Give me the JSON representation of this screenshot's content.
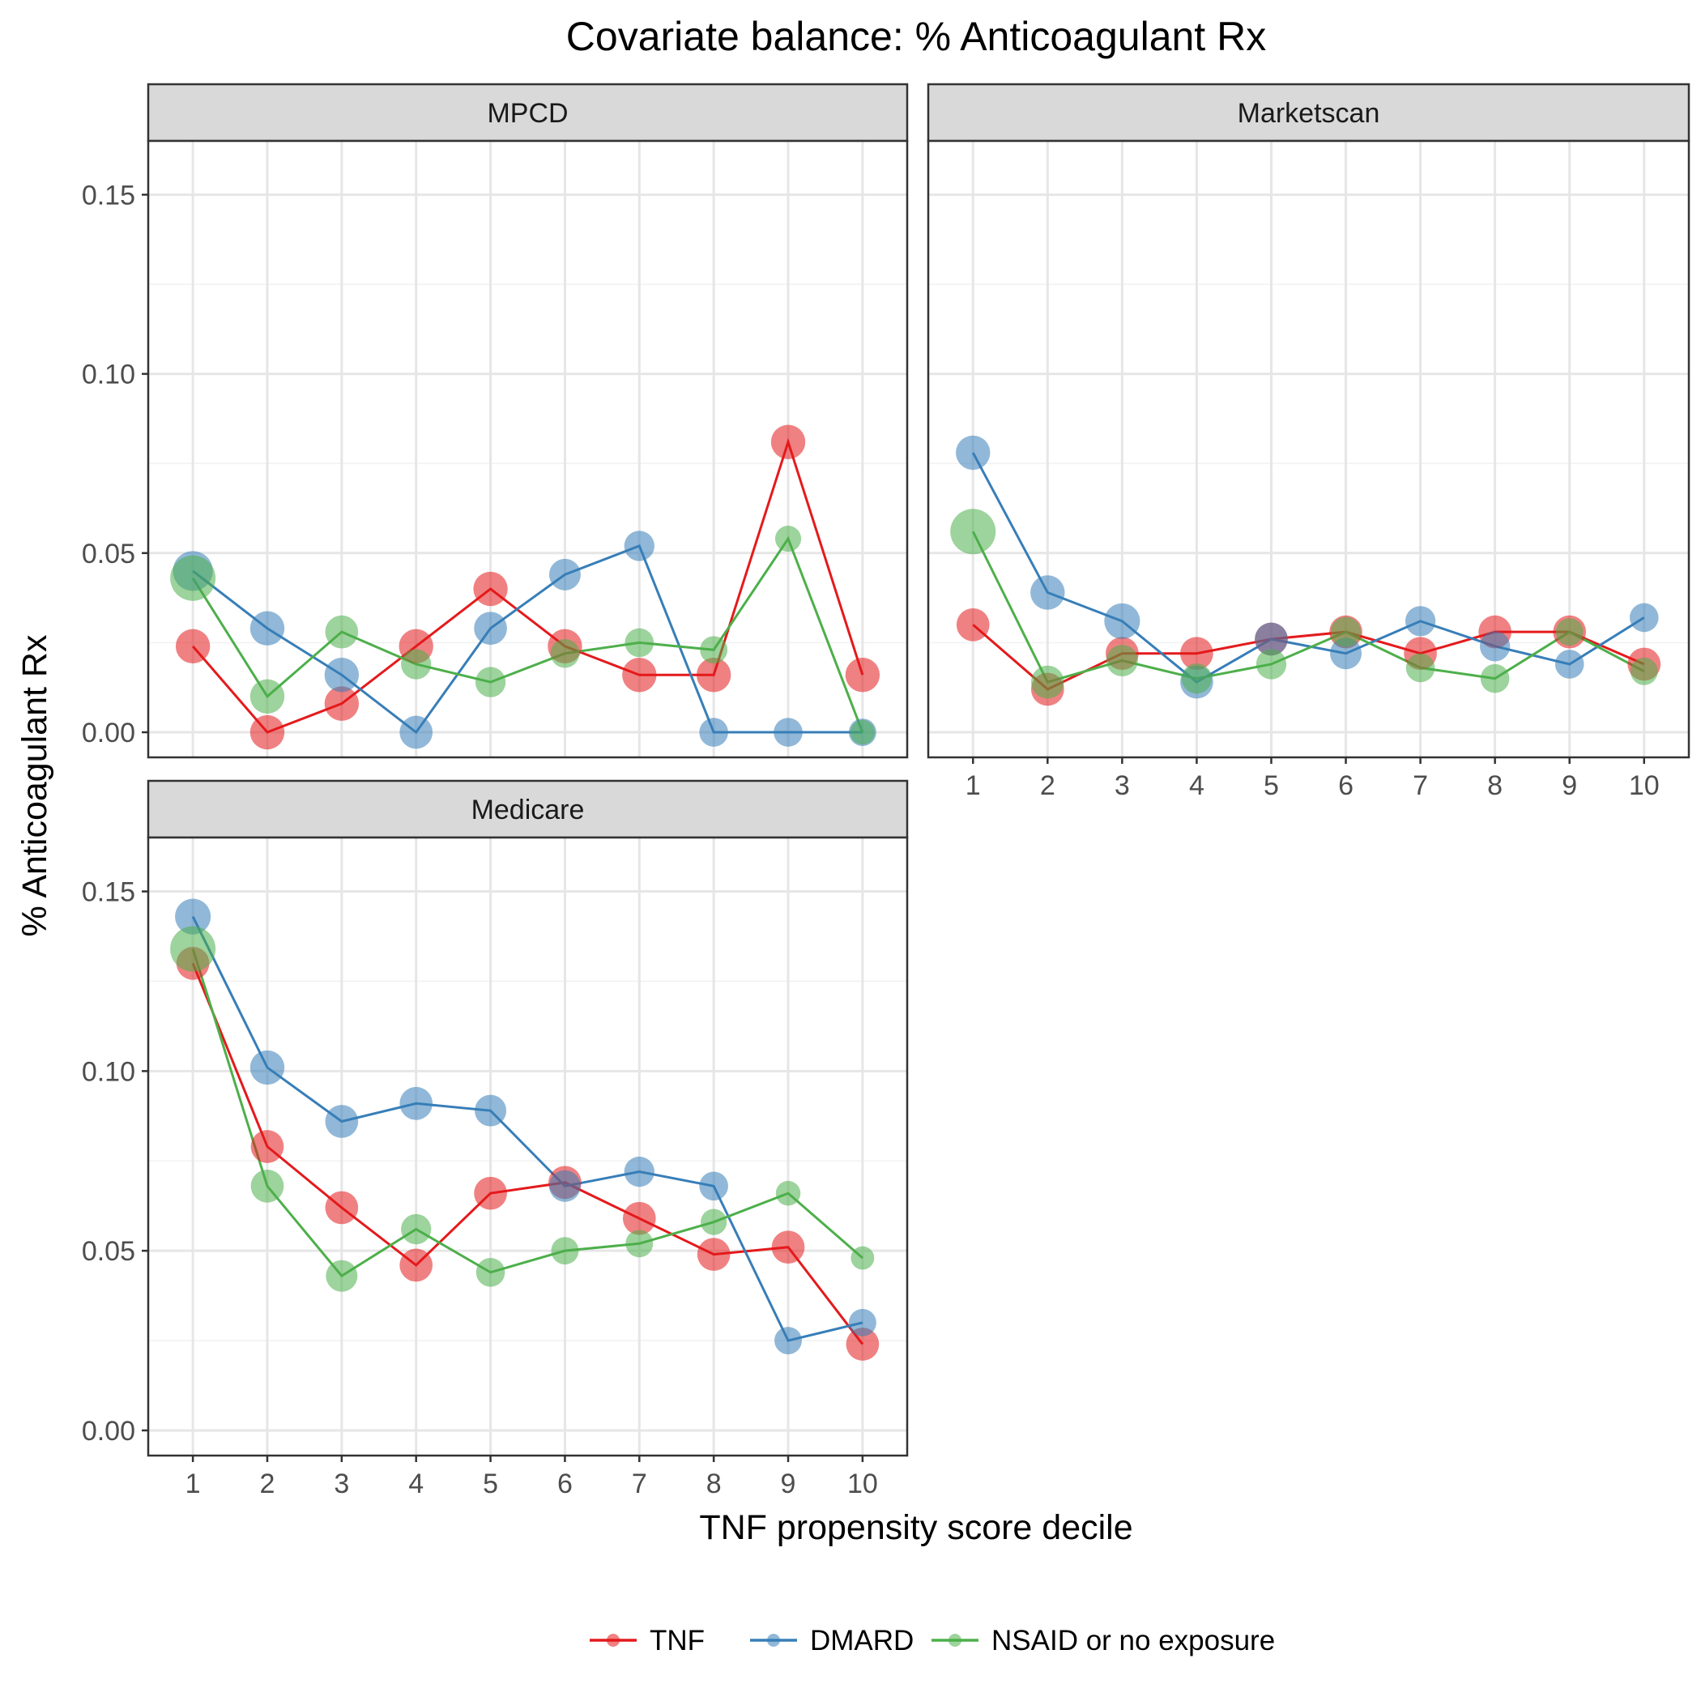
{
  "chart_data": {
    "type": "line",
    "title": "Covariate balance: % Anticoagulant Rx",
    "xlabel": "TNF propensity score decile",
    "ylabel": "% Anticoagulant Rx",
    "x": [
      1,
      2,
      3,
      4,
      5,
      6,
      7,
      8,
      9,
      10
    ],
    "x_tick_labels": [
      "1",
      "2",
      "3",
      "4",
      "5",
      "6",
      "7",
      "8",
      "9",
      "10"
    ],
    "ylim": [
      0,
      0.15
    ],
    "y_ticks": [
      0,
      0.05,
      0.1,
      0.15
    ],
    "y_tick_labels": [
      "0.00",
      "0.05",
      "0.10",
      "0.15"
    ],
    "grid": true,
    "legend_position": "bottom",
    "series_names": [
      "TNF",
      "DMARD",
      "NSAID or no exposure"
    ],
    "series_colors": [
      "#e41a1c",
      "#377eb8",
      "#4daf4a"
    ],
    "panels": [
      {
        "name": "MPCD",
        "series": [
          {
            "name": "TNF",
            "values": [
              0.024,
              0.0,
              0.008,
              0.024,
              0.04,
              0.024,
              0.016,
              0.016,
              0.081,
              0.016
            ],
            "relative_point_size": [
              0.6,
              0.6,
              0.6,
              0.6,
              0.6,
              0.6,
              0.6,
              0.6,
              0.6,
              0.6
            ]
          },
          {
            "name": "DMARD",
            "values": [
              0.045,
              0.029,
              0.016,
              0.0,
              0.029,
              0.044,
              0.052,
              0.0,
              0.0,
              0.0
            ],
            "relative_point_size": [
              0.8,
              0.6,
              0.6,
              0.55,
              0.55,
              0.5,
              0.45,
              0.4,
              0.4,
              0.35
            ]
          },
          {
            "name": "NSAID or no exposure",
            "values": [
              0.043,
              0.01,
              0.028,
              0.019,
              0.014,
              0.022,
              0.025,
              0.023,
              0.054,
              0.0
            ],
            "relative_point_size": [
              1.0,
              0.6,
              0.55,
              0.45,
              0.45,
              0.4,
              0.4,
              0.35,
              0.3,
              0.25
            ]
          }
        ]
      },
      {
        "name": "Marketscan",
        "series": [
          {
            "name": "TNF",
            "values": [
              0.03,
              0.012,
              0.022,
              0.022,
              0.026,
              0.028,
              0.022,
              0.028,
              0.028,
              0.019
            ],
            "relative_point_size": [
              0.55,
              0.55,
              0.55,
              0.55,
              0.55,
              0.55,
              0.55,
              0.55,
              0.55,
              0.55
            ]
          },
          {
            "name": "DMARD",
            "values": [
              0.078,
              0.039,
              0.031,
              0.014,
              0.026,
              0.022,
              0.031,
              0.024,
              0.019,
              0.032
            ],
            "relative_point_size": [
              0.6,
              0.6,
              0.65,
              0.55,
              0.55,
              0.5,
              0.45,
              0.45,
              0.4,
              0.4
            ]
          },
          {
            "name": "NSAID or no exposure",
            "values": [
              0.056,
              0.014,
              0.02,
              0.015,
              0.019,
              0.028,
              0.018,
              0.015,
              0.028,
              0.017
            ],
            "relative_point_size": [
              1.0,
              0.55,
              0.5,
              0.45,
              0.45,
              0.45,
              0.4,
              0.4,
              0.35,
              0.35
            ]
          }
        ]
      },
      {
        "name": "Medicare",
        "series": [
          {
            "name": "TNF",
            "values": [
              0.13,
              0.079,
              0.062,
              0.046,
              0.066,
              0.069,
              0.059,
              0.049,
              0.051,
              0.024
            ],
            "relative_point_size": [
              0.55,
              0.55,
              0.55,
              0.55,
              0.55,
              0.55,
              0.55,
              0.55,
              0.55,
              0.55
            ]
          },
          {
            "name": "DMARD",
            "values": [
              0.143,
              0.101,
              0.086,
              0.091,
              0.089,
              0.068,
              0.072,
              0.068,
              0.025,
              0.03
            ],
            "relative_point_size": [
              0.65,
              0.6,
              0.55,
              0.55,
              0.5,
              0.5,
              0.45,
              0.4,
              0.35,
              0.35
            ]
          },
          {
            "name": "NSAID or no exposure",
            "values": [
              0.134,
              0.068,
              0.043,
              0.056,
              0.044,
              0.05,
              0.052,
              0.058,
              0.066,
              0.048
            ],
            "relative_point_size": [
              1.0,
              0.55,
              0.5,
              0.45,
              0.4,
              0.35,
              0.35,
              0.3,
              0.25,
              0.2
            ]
          }
        ]
      }
    ]
  }
}
